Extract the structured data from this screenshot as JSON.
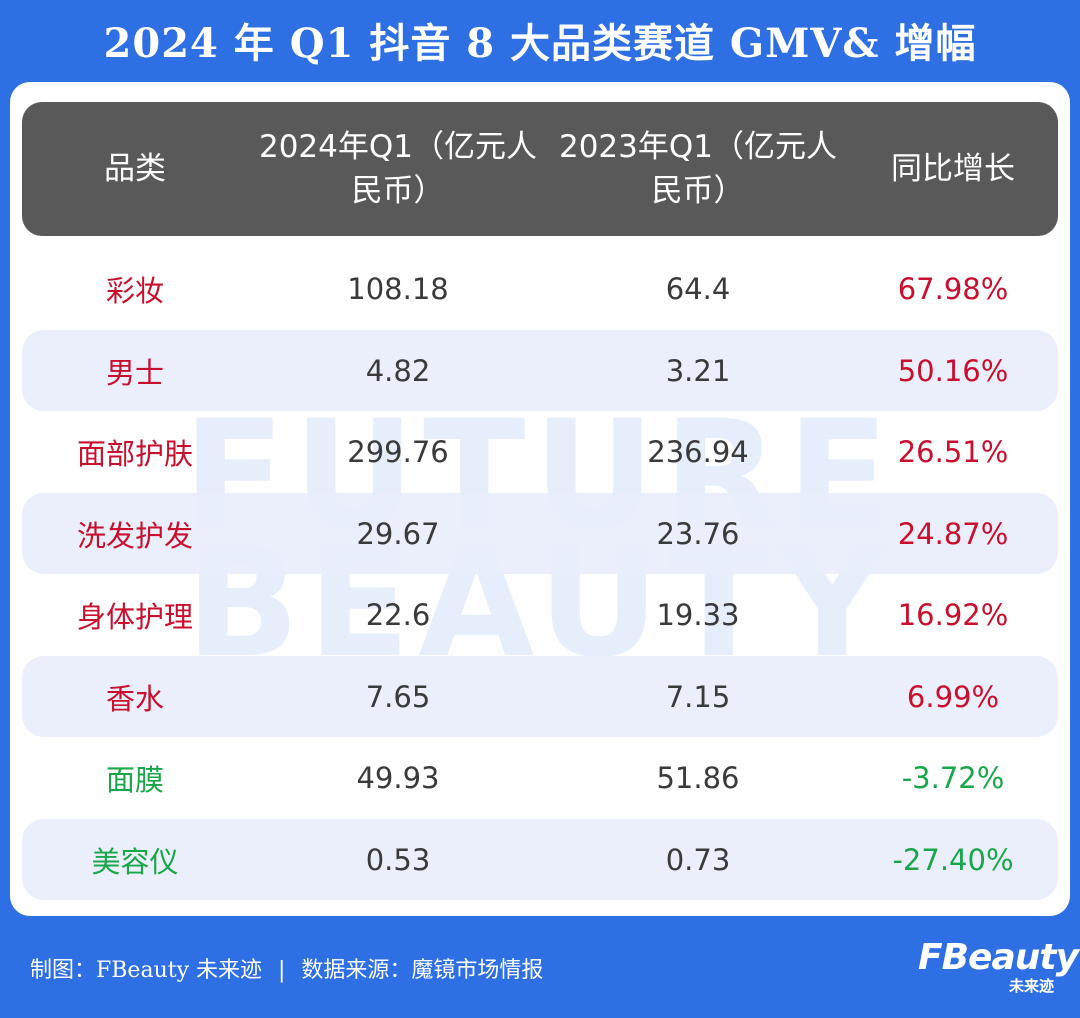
{
  "title": "2024 年 Q1 抖音 8 大品类赛道 GMV& 增幅",
  "watermark": {
    "line1": "FUTURE",
    "line2": "BEAUTY"
  },
  "table": {
    "headers": [
      "品类",
      "2024年Q1（亿元人民币）",
      "2023年Q1（亿元人民币）",
      "同比增长"
    ]
  },
  "chart_data": {
    "type": "table",
    "title": "2024 年 Q1 抖音 8 大品类赛道 GMV& 增幅",
    "columns": [
      "品类",
      "2024年Q1（亿元人民币）",
      "2023年Q1（亿元人民币）",
      "同比增长"
    ],
    "rows": [
      {
        "category": "彩妆",
        "q1_2024": "108.18",
        "q1_2023": "64.4",
        "growth": "67.98%"
      },
      {
        "category": "男士",
        "q1_2024": "4.82",
        "q1_2023": "3.21",
        "growth": "50.16%"
      },
      {
        "category": "面部护肤",
        "q1_2024": "299.76",
        "q1_2023": "236.94",
        "growth": "26.51%"
      },
      {
        "category": "洗发护发",
        "q1_2024": "29.67",
        "q1_2023": "23.76",
        "growth": "24.87%"
      },
      {
        "category": "身体护理",
        "q1_2024": "22.6",
        "q1_2023": "19.33",
        "growth": "16.92%"
      },
      {
        "category": "香水",
        "q1_2024": "7.65",
        "q1_2023": "7.15",
        "growth": "6.99%"
      },
      {
        "category": "面膜",
        "q1_2024": "49.93",
        "q1_2023": "51.86",
        "growth": "-3.72%"
      },
      {
        "category": "美容仪",
        "q1_2024": "0.53",
        "q1_2023": "0.73",
        "growth": "-27.40%"
      }
    ],
    "colors": {
      "positive": "#c8102e",
      "negative": "#1aa64a",
      "header_bg": "#595959",
      "stripe": "#e8eefb"
    }
  },
  "footer": {
    "credit": "制图：FBeauty 未来迹",
    "separator": "|",
    "source": "数据来源：魔镜市场情报",
    "logo_main": "FBeauty",
    "logo_sub": "未来迹"
  }
}
